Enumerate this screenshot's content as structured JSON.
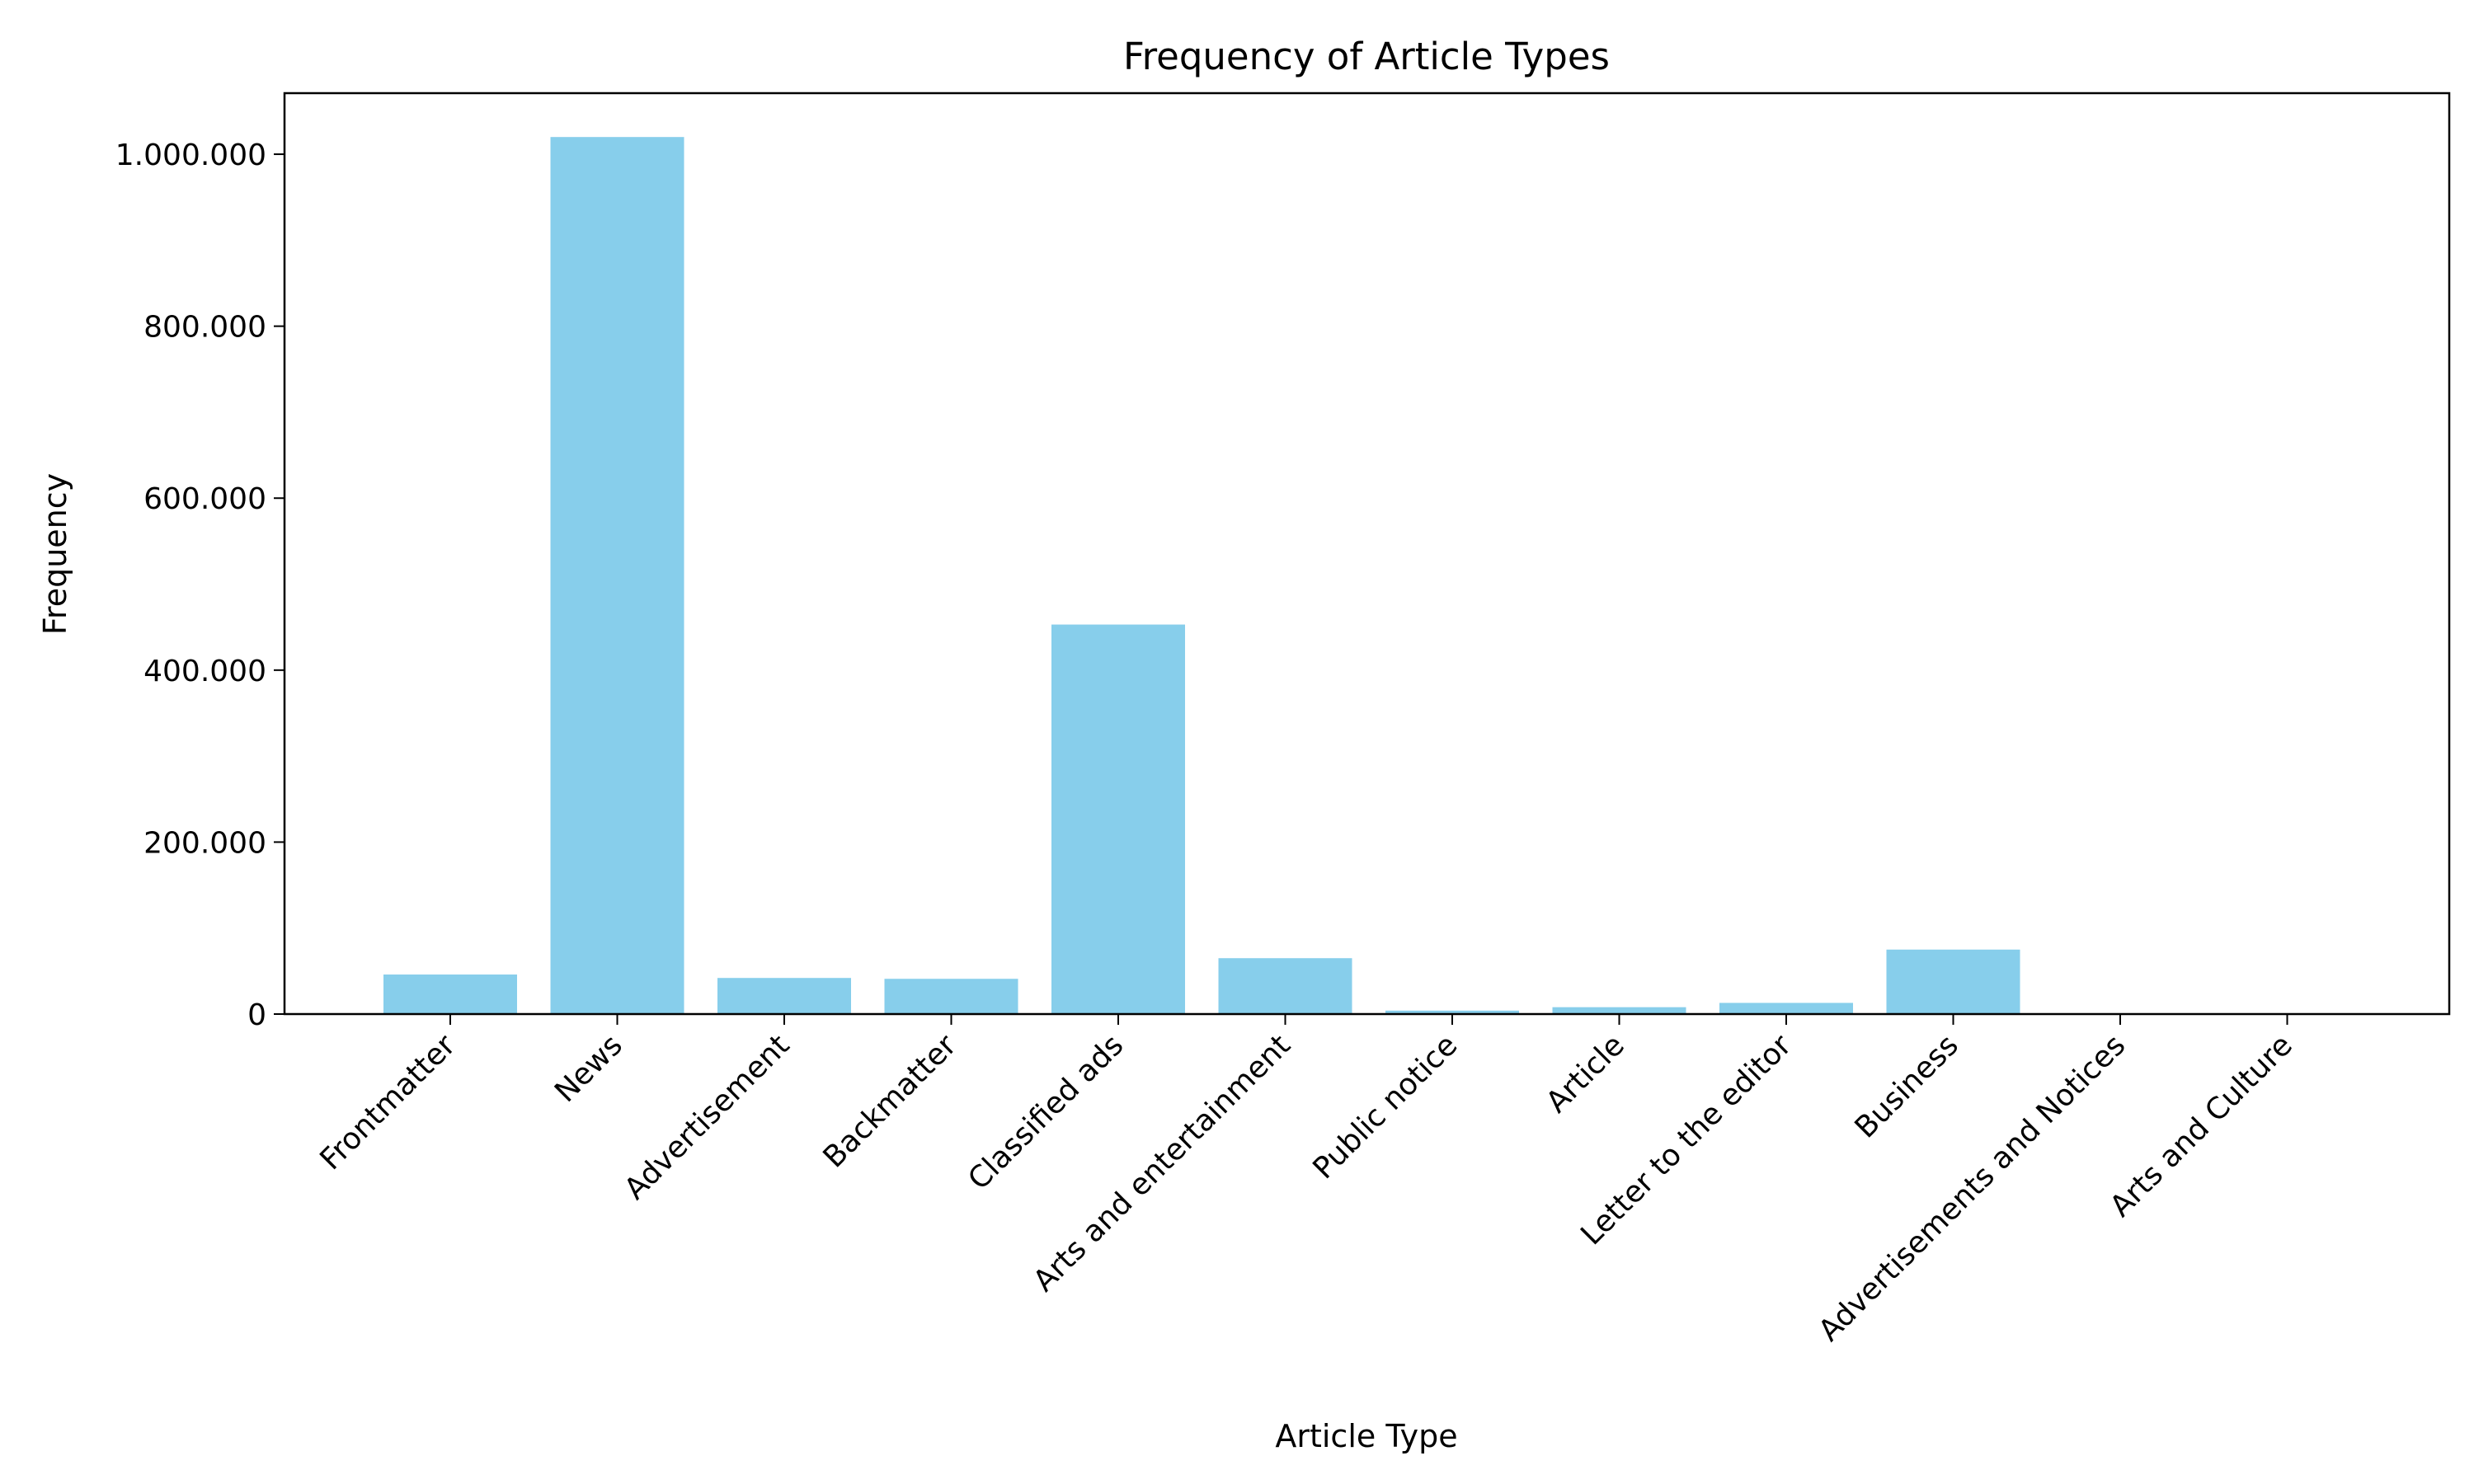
{
  "chart_data": {
    "type": "bar",
    "title": "Frequency of Article Types",
    "xlabel": "Article Type",
    "ylabel": "Frequency",
    "categories": [
      "Frontmatter",
      "News",
      "Advertisement",
      "Backmatter",
      "Classified ads",
      "Arts and entertainment",
      "Public notice",
      "Article",
      "Letter to the editor",
      "Business",
      "Advertisements and Notices",
      "Arts and Culture"
    ],
    "values": [
      46000,
      1020000,
      42000,
      41000,
      453000,
      65000,
      4000,
      8000,
      13000,
      75000,
      0,
      0
    ],
    "ylim": [
      0,
      1071000
    ],
    "yticks": [
      0,
      200000,
      400000,
      600000,
      800000,
      1000000
    ],
    "ytick_labels": [
      "0",
      "200.000",
      "400.000",
      "600.000",
      "800.000",
      "1.000.000"
    ],
    "bar_color": "#87CEEB",
    "grid": false,
    "legend": "none"
  }
}
